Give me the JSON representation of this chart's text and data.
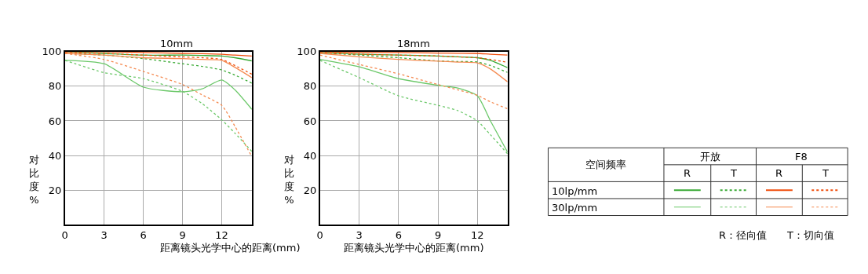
{
  "chart_data": [
    {
      "type": "line",
      "title": "10mm",
      "xlabel": "距离镜头光学中心的距离(mm)",
      "ylabel": "对比度%",
      "xlim": [
        0,
        14.3
      ],
      "xticks": [
        0,
        3,
        6,
        9,
        12
      ],
      "ylim": [
        0,
        100
      ],
      "yticks": [
        20,
        40,
        60,
        80,
        100
      ],
      "grid": true,
      "x": [
        0,
        3,
        6,
        9,
        10.5,
        12,
        13,
        14.3
      ],
      "series": [
        {
          "color": "#3aaa35",
          "line_style": "solid",
          "values": [
            100,
            99,
            98,
            98,
            97.8,
            97.5,
            96.5,
            94.7
          ]
        },
        {
          "color": "#3aaa35",
          "line_style": "dotted",
          "values": [
            99,
            98,
            96,
            93,
            91.5,
            89.4,
            86.5,
            81.8
          ]
        },
        {
          "color": "#f04e0c",
          "line_style": "solid",
          "values": [
            100,
            100,
            99.5,
            99,
            98.8,
            98.5,
            98,
            97.5
          ]
        },
        {
          "color": "#f04e0c",
          "line_style": "dotted",
          "values": [
            99.5,
            99,
            98,
            97,
            96.5,
            95.5,
            92,
            87
          ]
        },
        {
          "color": "#6cc86a",
          "line_style": "solid",
          "values": [
            95,
            93,
            79.5,
            76.8,
            78.5,
            83.6,
            78,
            66.7
          ]
        },
        {
          "color": "#6cc86a",
          "line_style": "dotted",
          "values": [
            95,
            87.9,
            84.4,
            77,
            70,
            60.6,
            53,
            42.4
          ]
        },
        {
          "color": "#f58a50",
          "line_style": "solid",
          "values": [
            99,
            98,
            96.5,
            96,
            95.5,
            95,
            91,
            85
          ]
        },
        {
          "color": "#f58a50",
          "line_style": "dotted",
          "values": [
            99,
            95.5,
            88.6,
            81,
            75,
            69,
            57,
            39.4
          ]
        }
      ]
    },
    {
      "type": "line",
      "title": "18mm",
      "xlabel": "距离镜头光学中心的距离(mm)",
      "ylabel": "对比度%",
      "xlim": [
        0,
        14.3
      ],
      "xticks": [
        0,
        3,
        6,
        9,
        12
      ],
      "ylim": [
        0,
        100
      ],
      "yticks": [
        20,
        40,
        60,
        80,
        100
      ],
      "grid": true,
      "x": [
        0,
        3,
        6,
        9,
        10.5,
        12,
        13,
        14.3
      ],
      "series": [
        {
          "color": "#3aaa35",
          "line_style": "solid",
          "values": [
            99.5,
            98.5,
            98,
            97.5,
            97,
            96.5,
            95,
            90.8
          ]
        },
        {
          "color": "#3aaa35",
          "line_style": "dotted",
          "values": [
            99.5,
            98,
            96.5,
            94.6,
            94.3,
            94,
            92,
            88
          ]
        },
        {
          "color": "#f04e0c",
          "line_style": "solid",
          "values": [
            100,
            99.5,
            99.5,
            99.2,
            99.1,
            99,
            98.5,
            98
          ]
        },
        {
          "color": "#f04e0c",
          "line_style": "dotted",
          "values": [
            99.5,
            98.5,
            98,
            97.5,
            97,
            96.5,
            95.5,
            93.8
          ]
        },
        {
          "color": "#6cc86a",
          "line_style": "solid",
          "values": [
            95.5,
            91.2,
            84.4,
            80.6,
            79,
            74.5,
            60,
            42
          ]
        },
        {
          "color": "#6cc86a",
          "line_style": "dotted",
          "values": [
            95,
            85,
            74.5,
            69,
            66,
            60,
            52,
            41
          ]
        },
        {
          "color": "#f58a50",
          "line_style": "solid",
          "values": [
            99,
            97,
            95.5,
            94.5,
            94,
            93.5,
            90,
            82.6
          ]
        },
        {
          "color": "#f58a50",
          "line_style": "dotted",
          "values": [
            98,
            92.6,
            87.2,
            81,
            78,
            74.8,
            71,
            67
          ]
        }
      ]
    },
    {
      "type": "other",
      "annotations": [
        "空间频率",
        "开放",
        "F8",
        "R",
        "T",
        "R",
        "T",
        "10lp/mm",
        "30lp/mm",
        "R：径向值",
        "T：切向值"
      ]
    }
  ]
}
